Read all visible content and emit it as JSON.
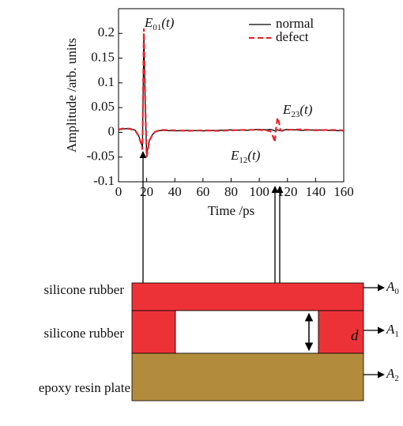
{
  "chart_data": {
    "type": "line",
    "x_label": "Time /ps",
    "y_label": "Amplitude /arb. units",
    "x": [
      0,
      4,
      8,
      12,
      14,
      16,
      17,
      18,
      19,
      20,
      21,
      22,
      24,
      26,
      30,
      40,
      50,
      60,
      70,
      80,
      90,
      100,
      105,
      108,
      110,
      111,
      112,
      113,
      114,
      115,
      116,
      118,
      120,
      130,
      140,
      150,
      160
    ],
    "series": [
      {
        "name": "normal",
        "color": "#000000",
        "dash": false,
        "values": [
          0.005,
          0.007,
          0.008,
          0.004,
          -0.005,
          -0.02,
          -0.03,
          0.2,
          0.05,
          -0.045,
          -0.03,
          -0.015,
          -0.005,
          0.002,
          0.004,
          0.003,
          0.004,
          0.003,
          0.004,
          0.005,
          0.004,
          0.006,
          0.005,
          0.006,
          0.004,
          0.003,
          0.004,
          0.005,
          0.004,
          0.003,
          0.004,
          0.005,
          0.006,
          0.004,
          0.005,
          0.004,
          0.003
        ]
      },
      {
        "name": "defect",
        "color": "#e8262c",
        "dash": true,
        "values": [
          0.006,
          0.008,
          0.007,
          0.003,
          -0.006,
          -0.022,
          -0.035,
          0.21,
          0.06,
          -0.05,
          -0.032,
          -0.016,
          -0.006,
          0.001,
          0.005,
          0.004,
          0.003,
          0.004,
          0.003,
          0.004,
          0.005,
          0.005,
          0.004,
          0.002,
          -0.01,
          -0.02,
          0.01,
          0.03,
          0.02,
          0.005,
          0.003,
          0.004,
          0.005,
          0.006,
          0.004,
          0.005,
          0.004
        ]
      }
    ],
    "xlim": [
      0,
      160
    ],
    "xticks": [
      0,
      20,
      40,
      60,
      80,
      100,
      120,
      140,
      160
    ],
    "ylim": [
      -0.1,
      0.25
    ],
    "yticks": [
      -0.1,
      -0.05,
      0,
      0.05,
      0.1,
      0.15,
      0.2
    ],
    "legend": "upper right",
    "annotations": [
      {
        "base": "E",
        "sub": "01",
        "arg": "(t)"
      },
      {
        "base": "E",
        "sub": "23",
        "arg": "(t)"
      },
      {
        "base": "E",
        "sub": "12",
        "arg": "(t)"
      }
    ]
  },
  "diagram": {
    "layers": [
      "silicone rubber",
      "silicone rubber",
      "epoxy resin plate"
    ],
    "outputs": [
      {
        "base": "A",
        "sub": "0"
      },
      {
        "base": "A",
        "sub": "1"
      },
      {
        "base": "A",
        "sub": "2"
      }
    ],
    "gap_label": "d"
  }
}
